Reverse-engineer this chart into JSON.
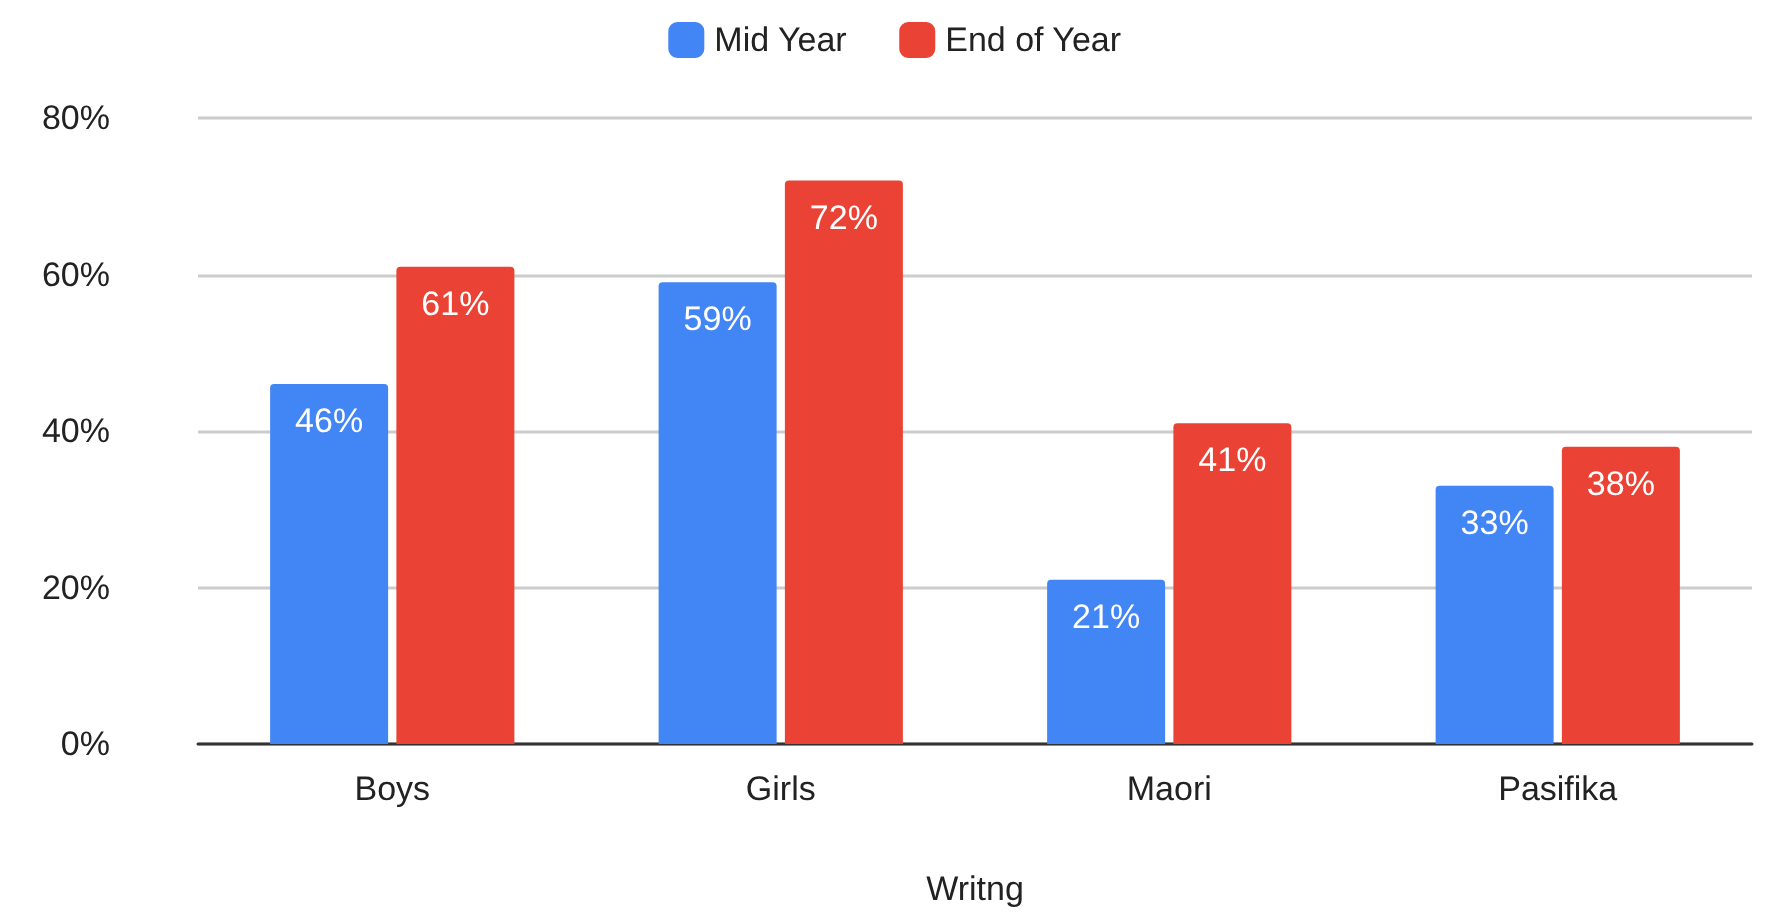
{
  "chart_data": {
    "type": "bar",
    "xlabel": "Writng",
    "categories": [
      "Boys",
      "Girls",
      "Maori",
      "Pasifika"
    ],
    "series": [
      {
        "name": "Mid Year",
        "color": "#4285f4",
        "values": [
          46,
          59,
          21,
          33
        ],
        "value_labels": [
          "46%",
          "59%",
          "21%",
          "33%"
        ]
      },
      {
        "name": "End of Year",
        "color": "#ea4335",
        "values": [
          61,
          72,
          41,
          38
        ],
        "value_labels": [
          "61%",
          "72%",
          "41%",
          "38%"
        ]
      }
    ],
    "ylim": [
      0,
      80
    ],
    "yticks": [
      {
        "value": 0,
        "label": "0%"
      },
      {
        "value": 20,
        "label": "20%"
      },
      {
        "value": 40,
        "label": "40%"
      },
      {
        "value": 60,
        "label": "60%"
      },
      {
        "value": 80,
        "label": "80%"
      }
    ],
    "grid": "y",
    "legend": "top"
  }
}
